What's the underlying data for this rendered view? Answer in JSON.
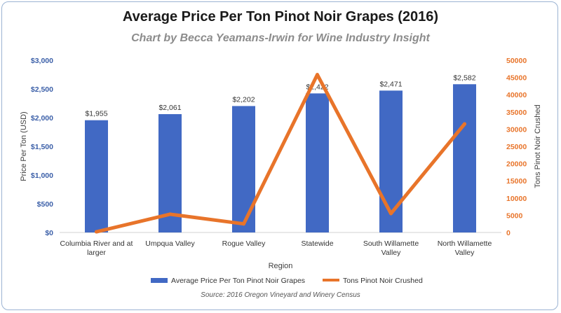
{
  "chart_data": {
    "type": "bar",
    "title": "Average Price Per Ton Pinot Noir Grapes (2016)",
    "subtitle": "Chart by Becca Yeamans-Irwin for Wine Industry Insight",
    "xlabel": "Region",
    "ylabel": "Price Per Ton (USD)",
    "y2label": "Tons Pinot Noir Crushed",
    "categories": [
      [
        "Columbia River and at",
        "larger"
      ],
      [
        "Umpqua Valley"
      ],
      [
        "Rogue Valley"
      ],
      [
        "Statewide"
      ],
      [
        "South Willamette",
        "Valley"
      ],
      [
        "North Willamette",
        "Valley"
      ]
    ],
    "series": [
      {
        "name": "Average Price Per Ton Pinot Noir Grapes",
        "type": "bar",
        "axis": "left",
        "color": "#4169c4",
        "values": [
          1955,
          2061,
          2202,
          2422,
          2471,
          2582
        ],
        "labels": [
          "$1,955",
          "$2,061",
          "$2,202",
          "$2,422",
          "$2,471",
          "$2,582"
        ]
      },
      {
        "name": "Tons Pinot Noir Crushed",
        "type": "line",
        "axis": "right",
        "color": "#e8742a",
        "values": [
          200,
          5300,
          2500,
          45800,
          5500,
          31500
        ]
      }
    ],
    "ylim": [
      0,
      3000
    ],
    "y2lim": [
      0,
      50000
    ],
    "yticks": [
      0,
      500,
      1000,
      1500,
      2000,
      2500,
      3000
    ],
    "ytick_labels": [
      "$0",
      "$500",
      "$1,000",
      "$1,500",
      "$2,000",
      "$2,500",
      "$3,000"
    ],
    "y2ticks": [
      0,
      5000,
      10000,
      15000,
      20000,
      25000,
      30000,
      35000,
      40000,
      45000,
      50000
    ],
    "y2tick_labels": [
      "0",
      "5000",
      "10000",
      "15000",
      "20000",
      "25000",
      "30000",
      "35000",
      "40000",
      "45000",
      "50000"
    ],
    "grid": false,
    "legend_position": "bottom",
    "source": "Source: 2016 Oregon Vineyard and Winery Census"
  }
}
